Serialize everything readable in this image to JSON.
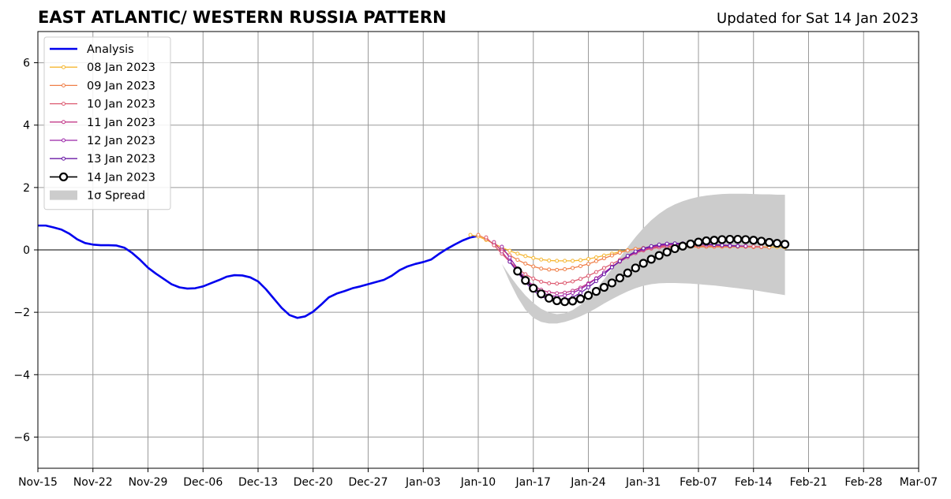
{
  "chart_data": {
    "type": "line",
    "title": "EAST ATLANTIC/ WESTERN RUSSIA PATTERN",
    "subtitle": "Updated for Sat 14 Jan 2023",
    "x_tick_labels": [
      "Nov-15",
      "Nov-22",
      "Nov-29",
      "Dec-06",
      "Dec-13",
      "Dec-20",
      "Dec-27",
      "Jan-03",
      "Jan-10",
      "Jan-17",
      "Jan-24",
      "Jan-31",
      "Feb-07",
      "Feb-14",
      "Feb-21",
      "Feb-28",
      "Mar-07"
    ],
    "x_tick_dates": [
      "2022-11-15",
      "2022-11-22",
      "2022-11-29",
      "2022-12-06",
      "2022-12-13",
      "2022-12-20",
      "2022-12-27",
      "2023-01-03",
      "2023-01-10",
      "2023-01-17",
      "2023-01-24",
      "2023-01-31",
      "2023-02-07",
      "2023-02-14",
      "2023-02-21",
      "2023-02-28",
      "2023-03-07"
    ],
    "xlim": [
      "2022-11-15",
      "2023-03-07"
    ],
    "y_tick_labels": [
      "−6",
      "−4",
      "−2",
      "0",
      "2",
      "4",
      "6"
    ],
    "y_tick_values": [
      -6,
      -4,
      -2,
      0,
      2,
      4,
      6
    ],
    "ylim": [
      -7,
      7
    ],
    "grid": true,
    "legend_position": "top-left",
    "series": [
      {
        "name": "Analysis",
        "color": "#0000ee",
        "style": "line",
        "start": "2022-11-15",
        "values": [
          0.78,
          0.78,
          0.72,
          0.65,
          0.52,
          0.34,
          0.22,
          0.17,
          0.15,
          0.15,
          0.14,
          0.07,
          -0.1,
          -0.32,
          -0.57,
          -0.76,
          -0.93,
          -1.1,
          -1.2,
          -1.24,
          -1.23,
          -1.17,
          -1.07,
          -0.97,
          -0.86,
          -0.81,
          -0.82,
          -0.88,
          -1.01,
          -1.26,
          -1.56,
          -1.86,
          -2.09,
          -2.18,
          -2.13,
          -1.98,
          -1.76,
          -1.52,
          -1.4,
          -1.32,
          -1.23,
          -1.17,
          -1.1,
          -1.03,
          -0.96,
          -0.83,
          -0.65,
          -0.53,
          -0.45,
          -0.39,
          -0.31,
          -0.13,
          0.03,
          0.17,
          0.3,
          0.4,
          0.45
        ]
      },
      {
        "name": "08 Jan 2023",
        "color": "#f5b732",
        "style": "line-small-marker",
        "start": "2023-01-09",
        "values": [
          0.48,
          0.43,
          0.32,
          0.2,
          0.08,
          -0.03,
          -0.12,
          -0.2,
          -0.26,
          -0.31,
          -0.34,
          -0.35,
          -0.35,
          -0.35,
          -0.33,
          -0.29,
          -0.24,
          -0.18,
          -0.12,
          -0.06,
          -0.01,
          0.03,
          0.06,
          0.08,
          0.09,
          0.1,
          0.1,
          0.1,
          0.1,
          0.1,
          0.1,
          0.1,
          0.1,
          0.1,
          0.1,
          0.1,
          0.1,
          0.1,
          0.09,
          0.09,
          0.08
        ]
      },
      {
        "name": "09 Jan 2023",
        "color": "#f07f48",
        "style": "line-small-marker",
        "start": "2023-01-10",
        "values": [
          0.48,
          0.35,
          0.18,
          0.0,
          -0.17,
          -0.32,
          -0.44,
          -0.53,
          -0.6,
          -0.63,
          -0.64,
          -0.62,
          -0.58,
          -0.52,
          -0.45,
          -0.36,
          -0.27,
          -0.18,
          -0.09,
          -0.02,
          0.03,
          0.06,
          0.08,
          0.09,
          0.1,
          0.1,
          0.1,
          0.1,
          0.1,
          0.1,
          0.1,
          0.1,
          0.1,
          0.1,
          0.1,
          0.09,
          0.09,
          0.08
        ]
      },
      {
        "name": "10 Jan 2023",
        "color": "#dd5a70",
        "style": "line-small-marker",
        "start": "2023-01-11",
        "values": [
          0.4,
          0.15,
          -0.12,
          -0.38,
          -0.6,
          -0.78,
          -0.92,
          -1.02,
          -1.07,
          -1.08,
          -1.06,
          -1.01,
          -0.93,
          -0.83,
          -0.71,
          -0.58,
          -0.45,
          -0.32,
          -0.2,
          -0.1,
          -0.02,
          0.04,
          0.08,
          0.1,
          0.12,
          0.13,
          0.13,
          0.13,
          0.13,
          0.13,
          0.13,
          0.13,
          0.12,
          0.12,
          0.11,
          0.1
        ]
      },
      {
        "name": "11 Jan 2023",
        "color": "#c33b8a",
        "style": "line-small-marker",
        "start": "2023-01-12",
        "values": [
          0.25,
          -0.05,
          -0.38,
          -0.68,
          -0.94,
          -1.14,
          -1.28,
          -1.36,
          -1.39,
          -1.37,
          -1.31,
          -1.21,
          -1.07,
          -0.91,
          -0.73,
          -0.55,
          -0.38,
          -0.23,
          -0.1,
          0.0,
          0.07,
          0.12,
          0.15,
          0.17,
          0.18,
          0.18,
          0.18,
          0.17,
          0.16,
          0.15,
          0.14,
          0.13,
          0.12
        ]
      },
      {
        "name": "12 Jan 2023",
        "color": "#9b24a8",
        "style": "line-small-marker",
        "start": "2023-01-13",
        "values": [
          0.1,
          -0.25,
          -0.6,
          -0.92,
          -1.18,
          -1.36,
          -1.46,
          -1.49,
          -1.46,
          -1.38,
          -1.26,
          -1.1,
          -0.92,
          -0.73,
          -0.54,
          -0.36,
          -0.2,
          -0.07,
          0.03,
          0.1,
          0.15,
          0.18,
          0.19,
          0.2,
          0.2,
          0.19,
          0.18,
          0.17,
          0.16,
          0.14,
          0.13,
          0.12
        ]
      },
      {
        "name": "13 Jan 2023",
        "color": "#6a1aa6",
        "style": "line-small-marker",
        "start": "2023-01-14",
        "values": [
          -0.38,
          -0.72,
          -1.04,
          -1.3,
          -1.49,
          -1.6,
          -1.63,
          -1.6,
          -1.52,
          -1.38,
          -1.2,
          -1.0,
          -0.78,
          -0.56,
          -0.36,
          -0.19,
          -0.05,
          0.05,
          0.12,
          0.17,
          0.2,
          0.21,
          0.21,
          0.2,
          0.19,
          0.18,
          0.16,
          0.15,
          0.13,
          0.12
        ]
      },
      {
        "name": "14 Jan 2023",
        "color": "#000000",
        "style": "line-large-marker",
        "start": "2023-01-15",
        "values": [
          -0.68,
          -0.98,
          -1.23,
          -1.41,
          -1.55,
          -1.63,
          -1.66,
          -1.64,
          -1.57,
          -1.46,
          -1.33,
          -1.2,
          -1.06,
          -0.9,
          -0.74,
          -0.58,
          -0.43,
          -0.3,
          -0.18,
          -0.07,
          0.04,
          0.12,
          0.19,
          0.25,
          0.29,
          0.31,
          0.33,
          0.34,
          0.34,
          0.33,
          0.31,
          0.28,
          0.24,
          0.21,
          0.18
        ]
      }
    ],
    "spread": {
      "name": "1σ Spread",
      "color": "#cccccc",
      "start": "2023-01-13",
      "upper": [
        -0.45,
        -0.82,
        -1.16,
        -1.46,
        -1.7,
        -1.89,
        -2.01,
        -2.06,
        -2.03,
        -1.93,
        -1.76,
        -1.53,
        -1.25,
        -0.94,
        -0.6,
        -0.25,
        0.09,
        0.41,
        0.7,
        0.95,
        1.16,
        1.33,
        1.46,
        1.56,
        1.64,
        1.7,
        1.74,
        1.77,
        1.79,
        1.8,
        1.8,
        1.8,
        1.79,
        1.78,
        1.78,
        1.77,
        1.77
      ],
      "lower": [
        -0.45,
        -1.02,
        -1.52,
        -1.92,
        -2.18,
        -2.31,
        -2.36,
        -2.36,
        -2.31,
        -2.23,
        -2.13,
        -2.01,
        -1.87,
        -1.72,
        -1.58,
        -1.45,
        -1.33,
        -1.23,
        -1.15,
        -1.1,
        -1.07,
        -1.06,
        -1.06,
        -1.07,
        -1.08,
        -1.1,
        -1.12,
        -1.14,
        -1.17,
        -1.2,
        -1.23,
        -1.26,
        -1.29,
        -1.33,
        -1.37,
        -1.41,
        -1.45
      ]
    },
    "legend": [
      {
        "label": "Analysis",
        "color": "#0000ee",
        "style": "line"
      },
      {
        "label": "08 Jan 2023",
        "color": "#f5b732",
        "style": "line-small-marker"
      },
      {
        "label": "09 Jan 2023",
        "color": "#f07f48",
        "style": "line-small-marker"
      },
      {
        "label": "10 Jan 2023",
        "color": "#dd5a70",
        "style": "line-small-marker"
      },
      {
        "label": "11 Jan 2023",
        "color": "#c33b8a",
        "style": "line-small-marker"
      },
      {
        "label": "12 Jan 2023",
        "color": "#9b24a8",
        "style": "line-small-marker"
      },
      {
        "label": "13 Jan 2023",
        "color": "#6a1aa6",
        "style": "line-small-marker"
      },
      {
        "label": "14 Jan 2023",
        "color": "#000000",
        "style": "line-large-marker"
      },
      {
        "label": "1σ Spread",
        "color": "#cccccc",
        "style": "patch"
      }
    ]
  }
}
